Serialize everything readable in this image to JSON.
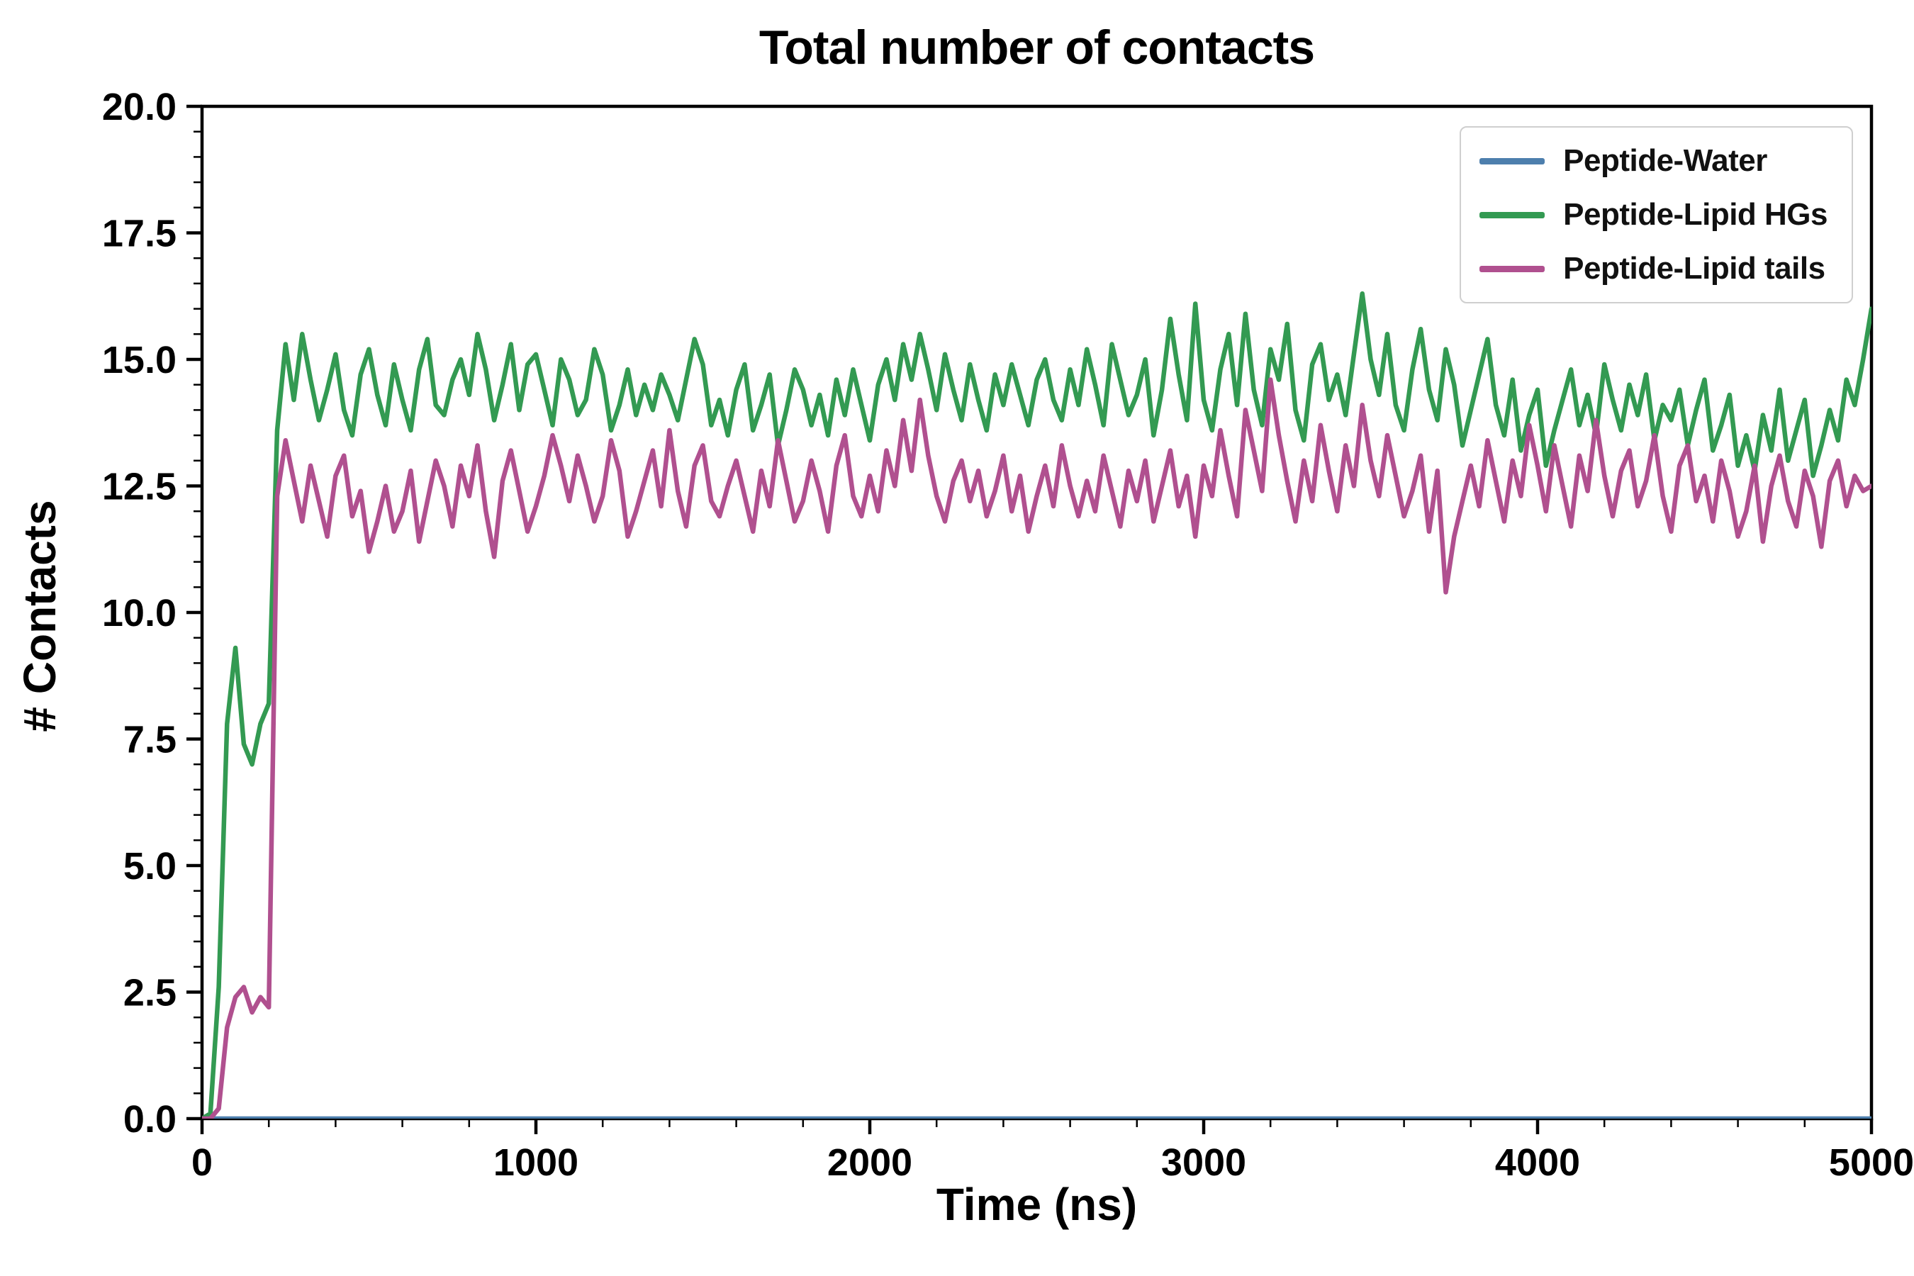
{
  "chart_data": {
    "type": "line",
    "title": "Total number of contacts",
    "xlabel": "Time (ns)",
    "ylabel": "# Contacts",
    "xlim": [
      0,
      5000
    ],
    "ylim": [
      0.0,
      20.0
    ],
    "x_ticks": [
      0,
      1000,
      2000,
      3000,
      4000,
      5000
    ],
    "x_tick_labels": [
      "0",
      "1000",
      "2000",
      "3000",
      "4000",
      "5000"
    ],
    "y_ticks": [
      0.0,
      2.5,
      5.0,
      7.5,
      10.0,
      12.5,
      15.0,
      17.5,
      20.0
    ],
    "y_tick_labels": [
      "0.0",
      "2.5",
      "5.0",
      "7.5",
      "10.0",
      "12.5",
      "15.0",
      "17.5",
      "20.0"
    ],
    "x_minor_step": 200,
    "y_minor_step": 0.5,
    "grid": false,
    "legend_position": "upper right",
    "x_start": 0,
    "x_step": 25,
    "series": [
      {
        "name": "Peptide-Water",
        "color": "#4d7fad",
        "constant": 0.0
      },
      {
        "name": "Peptide-Lipid HGs",
        "color": "#339a52",
        "values": [
          0.0,
          0.1,
          2.6,
          7.8,
          9.3,
          7.4,
          7.0,
          7.8,
          8.2,
          13.6,
          15.3,
          14.2,
          15.5,
          14.6,
          13.8,
          14.4,
          15.1,
          14.0,
          13.5,
          14.7,
          15.2,
          14.3,
          13.7,
          14.9,
          14.2,
          13.6,
          14.8,
          15.4,
          14.1,
          13.9,
          14.6,
          15.0,
          14.3,
          15.5,
          14.8,
          13.8,
          14.5,
          15.3,
          14.0,
          14.9,
          15.1,
          14.4,
          13.7,
          15.0,
          14.6,
          13.9,
          14.2,
          15.2,
          14.7,
          13.6,
          14.1,
          14.8,
          13.9,
          14.5,
          14.0,
          14.7,
          14.3,
          13.8,
          14.6,
          15.4,
          14.9,
          13.7,
          14.2,
          13.5,
          14.4,
          14.9,
          13.6,
          14.1,
          14.7,
          13.3,
          14.0,
          14.8,
          14.4,
          13.7,
          14.3,
          13.5,
          14.6,
          13.9,
          14.8,
          14.1,
          13.4,
          14.5,
          15.0,
          14.2,
          15.3,
          14.6,
          15.5,
          14.8,
          14.0,
          15.1,
          14.4,
          13.8,
          14.9,
          14.2,
          13.6,
          14.7,
          14.1,
          14.9,
          14.3,
          13.7,
          14.6,
          15.0,
          14.2,
          13.8,
          14.8,
          14.1,
          15.2,
          14.5,
          13.7,
          15.3,
          14.6,
          13.9,
          14.3,
          15.0,
          13.5,
          14.4,
          15.8,
          14.7,
          13.8,
          16.1,
          14.2,
          13.6,
          14.8,
          15.5,
          14.1,
          15.9,
          14.4,
          13.7,
          15.2,
          14.6,
          15.7,
          14.0,
          13.4,
          14.9,
          15.3,
          14.2,
          14.7,
          13.9,
          15.1,
          16.3,
          15.0,
          14.3,
          15.5,
          14.1,
          13.6,
          14.8,
          15.6,
          14.4,
          13.8,
          15.2,
          14.5,
          13.3,
          14.0,
          14.7,
          15.4,
          14.1,
          13.5,
          14.6,
          13.2,
          13.9,
          14.4,
          12.9,
          13.6,
          14.2,
          14.8,
          13.7,
          14.3,
          13.5,
          14.9,
          14.2,
          13.6,
          14.5,
          13.9,
          14.7,
          13.4,
          14.1,
          13.8,
          14.4,
          13.3,
          14.0,
          14.6,
          13.2,
          13.7,
          14.3,
          12.9,
          13.5,
          12.8,
          13.9,
          13.2,
          14.4,
          13.0,
          13.6,
          14.2,
          12.7,
          13.3,
          14.0,
          13.4,
          14.6,
          14.1,
          15.0,
          16.0
        ]
      },
      {
        "name": "Peptide-Lipid tails",
        "color": "#b0508f",
        "values": [
          0.0,
          0.0,
          0.2,
          1.8,
          2.4,
          2.6,
          2.1,
          2.4,
          2.2,
          12.3,
          13.4,
          12.6,
          11.8,
          12.9,
          12.2,
          11.5,
          12.7,
          13.1,
          11.9,
          12.4,
          11.2,
          11.8,
          12.5,
          11.6,
          12.0,
          12.8,
          11.4,
          12.2,
          13.0,
          12.5,
          11.7,
          12.9,
          12.3,
          13.3,
          12.0,
          11.1,
          12.6,
          13.2,
          12.4,
          11.6,
          12.1,
          12.7,
          13.5,
          12.9,
          12.2,
          13.1,
          12.5,
          11.8,
          12.3,
          13.4,
          12.8,
          11.5,
          12.0,
          12.6,
          13.2,
          12.1,
          13.6,
          12.4,
          11.7,
          12.9,
          13.3,
          12.2,
          11.9,
          12.5,
          13.0,
          12.3,
          11.6,
          12.8,
          12.1,
          13.4,
          12.6,
          11.8,
          12.2,
          13.0,
          12.4,
          11.6,
          12.9,
          13.5,
          12.3,
          11.9,
          12.7,
          12.0,
          13.2,
          12.5,
          13.8,
          12.8,
          14.2,
          13.1,
          12.3,
          11.8,
          12.6,
          13.0,
          12.2,
          12.8,
          11.9,
          12.4,
          13.1,
          12.0,
          12.7,
          11.6,
          12.3,
          12.9,
          12.1,
          13.3,
          12.5,
          11.9,
          12.6,
          12.0,
          13.1,
          12.4,
          11.7,
          12.8,
          12.2,
          13.0,
          11.8,
          12.5,
          13.2,
          12.1,
          12.7,
          11.5,
          12.9,
          12.3,
          13.6,
          12.7,
          11.9,
          14.0,
          13.2,
          12.4,
          14.6,
          13.5,
          12.6,
          11.8,
          13.0,
          12.2,
          13.7,
          12.8,
          12.0,
          13.3,
          12.5,
          14.1,
          13.0,
          12.3,
          13.5,
          12.7,
          11.9,
          12.4,
          13.1,
          11.6,
          12.8,
          10.4,
          11.5,
          12.2,
          12.9,
          12.1,
          13.4,
          12.6,
          11.8,
          13.0,
          12.3,
          13.7,
          12.9,
          12.0,
          13.3,
          12.5,
          11.7,
          13.1,
          12.4,
          13.8,
          12.7,
          11.9,
          12.8,
          13.2,
          12.1,
          12.6,
          13.5,
          12.3,
          11.6,
          12.9,
          13.3,
          12.2,
          12.7,
          11.8,
          13.0,
          12.4,
          11.5,
          12.0,
          12.9,
          11.4,
          12.5,
          13.1,
          12.2,
          11.7,
          12.8,
          12.3,
          11.3,
          12.6,
          13.0,
          12.1,
          12.7,
          12.4,
          12.5
        ]
      }
    ]
  }
}
